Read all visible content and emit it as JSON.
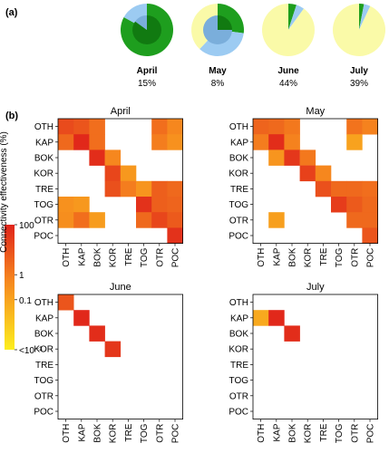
{
  "panel_labels": {
    "a": "(a)",
    "b": "(b)"
  },
  "colors": {
    "pie_dark_green": "#1e9e1e",
    "pie_darker_green": "#117a11",
    "pie_light_blue": "#9ccbf2",
    "pie_blue": "#7aaedb",
    "pie_yellow": "#fafaa8",
    "scale_high": "#e0231a",
    "scale_mid": "#f6871e",
    "scale_low": "#fcee1e"
  },
  "chart_data": [
    {
      "type": "pie",
      "panel": "(a)",
      "months": [
        {
          "name": "April",
          "percent_label": "15%",
          "outer": [
            {
              "color": "pie_dark_green",
              "fraction": 0.83
            },
            {
              "color": "pie_light_blue",
              "fraction": 0.17
            }
          ],
          "inner": [
            {
              "color": "pie_darker_green",
              "fraction": 0.85
            },
            {
              "color": "pie_blue",
              "fraction": 0.15
            }
          ]
        },
        {
          "name": "May",
          "percent_label": "8%",
          "outer": [
            {
              "color": "pie_dark_green",
              "fraction": 0.27
            },
            {
              "color": "pie_light_blue",
              "fraction": 0.35
            },
            {
              "color": "pie_yellow",
              "fraction": 0.38
            }
          ],
          "inner": [
            {
              "color": "pie_darker_green",
              "fraction": 0.25
            },
            {
              "color": "pie_blue",
              "fraction": 0.75
            }
          ]
        },
        {
          "name": "June",
          "percent_label": "44%",
          "outer": [
            {
              "color": "pie_dark_green",
              "fraction": 0.05
            },
            {
              "color": "pie_light_blue",
              "fraction": 0.05
            },
            {
              "color": "pie_yellow",
              "fraction": 0.9
            }
          ],
          "inner": []
        },
        {
          "name": "July",
          "percent_label": "39%",
          "outer": [
            {
              "color": "pie_dark_green",
              "fraction": 0.03
            },
            {
              "color": "pie_light_blue",
              "fraction": 0.04
            },
            {
              "color": "pie_yellow",
              "fraction": 0.93
            }
          ],
          "inner": []
        }
      ]
    },
    {
      "type": "heatmap",
      "panel": "(b)",
      "sites": [
        "OTH",
        "KAP",
        "BOK",
        "KOR",
        "TRE",
        "TOG",
        "OTR",
        "POC"
      ],
      "colorbar": {
        "label": "Connectivity effectiveness (%)",
        "ticks": [
          "100",
          "1",
          "0.1",
          "<10⁻³"
        ],
        "tick_values": [
          100,
          1,
          0.1,
          0.001
        ]
      },
      "value_scale": "log10 of connectivity effectiveness (%)",
      "panels": [
        {
          "title": "April",
          "cells": [
            {
              "row": "OTH",
              "col": "OTH",
              "v": 1.2
            },
            {
              "row": "OTH",
              "col": "KAP",
              "v": 1.0
            },
            {
              "row": "OTH",
              "col": "BOK",
              "v": 0.5
            },
            {
              "row": "OTH",
              "col": "OTR",
              "v": 0.5
            },
            {
              "row": "OTH",
              "col": "POC",
              "v": 0.0
            },
            {
              "row": "KAP",
              "col": "OTH",
              "v": 0.6
            },
            {
              "row": "KAP",
              "col": "KAP",
              "v": 1.9
            },
            {
              "row": "KAP",
              "col": "BOK",
              "v": 0.5
            },
            {
              "row": "KAP",
              "col": "OTR",
              "v": 0.2
            },
            {
              "row": "KAP",
              "col": "POC",
              "v": -0.3
            },
            {
              "row": "BOK",
              "col": "BOK",
              "v": 1.8
            },
            {
              "row": "BOK",
              "col": "KOR",
              "v": 0.0
            },
            {
              "row": "KOR",
              "col": "KOR",
              "v": 1.3
            },
            {
              "row": "KOR",
              "col": "TRE",
              "v": -0.5
            },
            {
              "row": "TRE",
              "col": "KOR",
              "v": 1.1
            },
            {
              "row": "TRE",
              "col": "TRE",
              "v": 0.2
            },
            {
              "row": "TRE",
              "col": "TOG",
              "v": -0.4
            },
            {
              "row": "TRE",
              "col": "OTR",
              "v": 0.8
            },
            {
              "row": "TRE",
              "col": "POC",
              "v": 0.6
            },
            {
              "row": "TOG",
              "col": "OTH",
              "v": -0.3
            },
            {
              "row": "TOG",
              "col": "KAP",
              "v": -0.5
            },
            {
              "row": "TOG",
              "col": "TOG",
              "v": 1.7
            },
            {
              "row": "TOG",
              "col": "OTR",
              "v": 0.8
            },
            {
              "row": "TOG",
              "col": "POC",
              "v": 0.7
            },
            {
              "row": "OTR",
              "col": "OTH",
              "v": -0.2
            },
            {
              "row": "OTR",
              "col": "KAP",
              "v": 0.5
            },
            {
              "row": "OTR",
              "col": "BOK",
              "v": -0.6
            },
            {
              "row": "OTR",
              "col": "TOG",
              "v": 0.6
            },
            {
              "row": "OTR",
              "col": "OTR",
              "v": 1.3
            },
            {
              "row": "OTR",
              "col": "POC",
              "v": 0.9
            },
            {
              "row": "POC",
              "col": "POC",
              "v": 1.7
            }
          ]
        },
        {
          "title": "May",
          "cells": [
            {
              "row": "OTH",
              "col": "OTH",
              "v": 0.7
            },
            {
              "row": "OTH",
              "col": "KAP",
              "v": 0.6
            },
            {
              "row": "OTH",
              "col": "BOK",
              "v": 0.3
            },
            {
              "row": "OTH",
              "col": "OTR",
              "v": 0.4
            },
            {
              "row": "OTH",
              "col": "POC",
              "v": 0.1
            },
            {
              "row": "KAP",
              "col": "OTH",
              "v": 0.2
            },
            {
              "row": "KAP",
              "col": "KAP",
              "v": 1.8
            },
            {
              "row": "KAP",
              "col": "BOK",
              "v": 0.1
            },
            {
              "row": "KAP",
              "col": "OTR",
              "v": -0.8
            },
            {
              "row": "BOK",
              "col": "KAP",
              "v": -0.4
            },
            {
              "row": "BOK",
              "col": "BOK",
              "v": 1.6
            },
            {
              "row": "BOK",
              "col": "KOR",
              "v": 0.3
            },
            {
              "row": "KOR",
              "col": "KOR",
              "v": 1.4
            },
            {
              "row": "KOR",
              "col": "TRE",
              "v": 0.0
            },
            {
              "row": "TRE",
              "col": "TRE",
              "v": 1.1
            },
            {
              "row": "TRE",
              "col": "TOG",
              "v": 0.6
            },
            {
              "row": "TRE",
              "col": "OTR",
              "v": 0.6
            },
            {
              "row": "TRE",
              "col": "POC",
              "v": 0.5
            },
            {
              "row": "TOG",
              "col": "TOG",
              "v": 1.5
            },
            {
              "row": "TOG",
              "col": "OTR",
              "v": 0.9
            },
            {
              "row": "TOG",
              "col": "POC",
              "v": 0.6
            },
            {
              "row": "OTR",
              "col": "KAP",
              "v": -0.7
            },
            {
              "row": "OTR",
              "col": "OTR",
              "v": 0.6
            },
            {
              "row": "OTR",
              "col": "POC",
              "v": 0.6
            },
            {
              "row": "POC",
              "col": "POC",
              "v": 1.0
            }
          ]
        },
        {
          "title": "June",
          "cells": [
            {
              "row": "OTH",
              "col": "OTH",
              "v": 1.0
            },
            {
              "row": "KAP",
              "col": "KAP",
              "v": 1.9
            },
            {
              "row": "BOK",
              "col": "BOK",
              "v": 1.8
            },
            {
              "row": "KOR",
              "col": "KOR",
              "v": 1.6
            }
          ]
        },
        {
          "title": "July",
          "cells": [
            {
              "row": "KAP",
              "col": "OTH",
              "v": -1.0
            },
            {
              "row": "KAP",
              "col": "KAP",
              "v": 1.9
            },
            {
              "row": "BOK",
              "col": "BOK",
              "v": 1.8
            }
          ]
        }
      ]
    }
  ]
}
